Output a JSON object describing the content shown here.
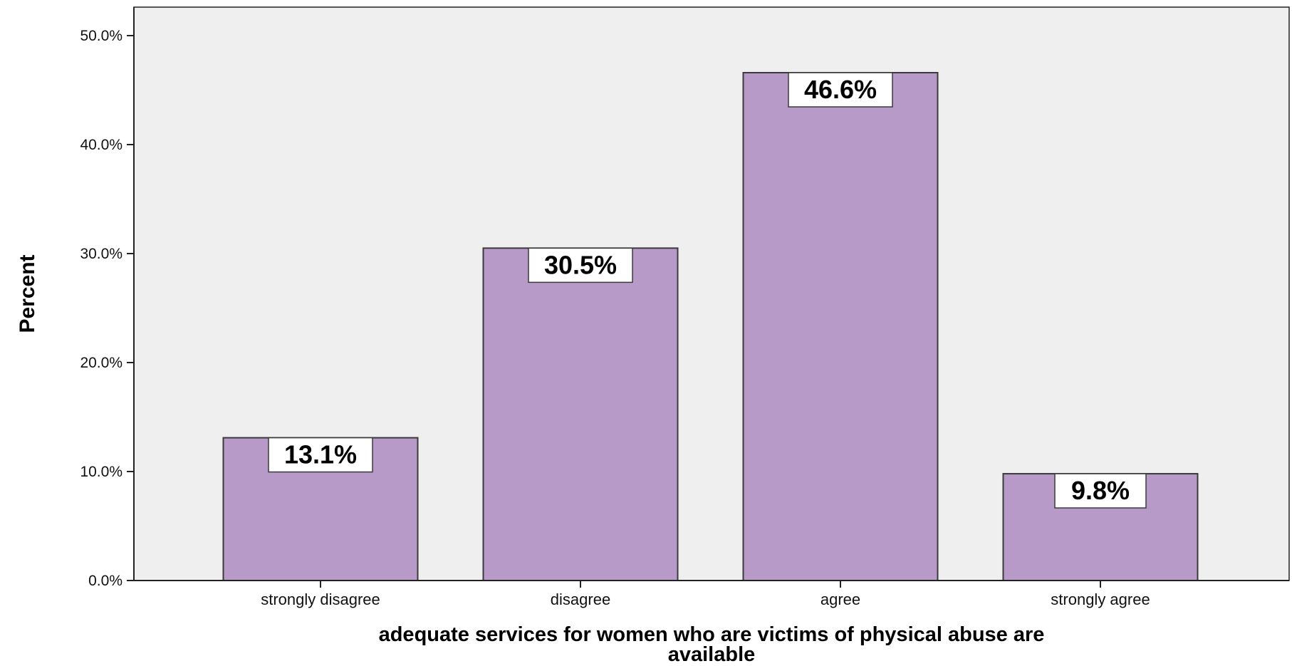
{
  "chart_data": {
    "type": "bar",
    "title": "",
    "xlabel": "adequate services for women who are victims of physical abuse are available",
    "ylabel": "Percent",
    "categories": [
      "strongly disagree",
      "disagree",
      "agree",
      "strongly agree"
    ],
    "values": [
      13.1,
      30.5,
      46.6,
      9.8
    ],
    "data_labels": [
      "13.1%",
      "30.5%",
      "46.6%",
      "9.8%"
    ],
    "ylim": [
      0,
      50
    ],
    "y_ticks": [
      0,
      10,
      20,
      30,
      40,
      50
    ],
    "y_tick_labels": [
      "0.0%",
      "10.0%",
      "20.0%",
      "30.0%",
      "40.0%",
      "50.0%"
    ],
    "grid": false,
    "legend": "none",
    "colors": {
      "bar_fill": "#b89ac9",
      "bar_stroke": "#3a3a3a",
      "plot_background": "#efefef",
      "axis": "#222222",
      "label_box": "#ffffff"
    }
  }
}
